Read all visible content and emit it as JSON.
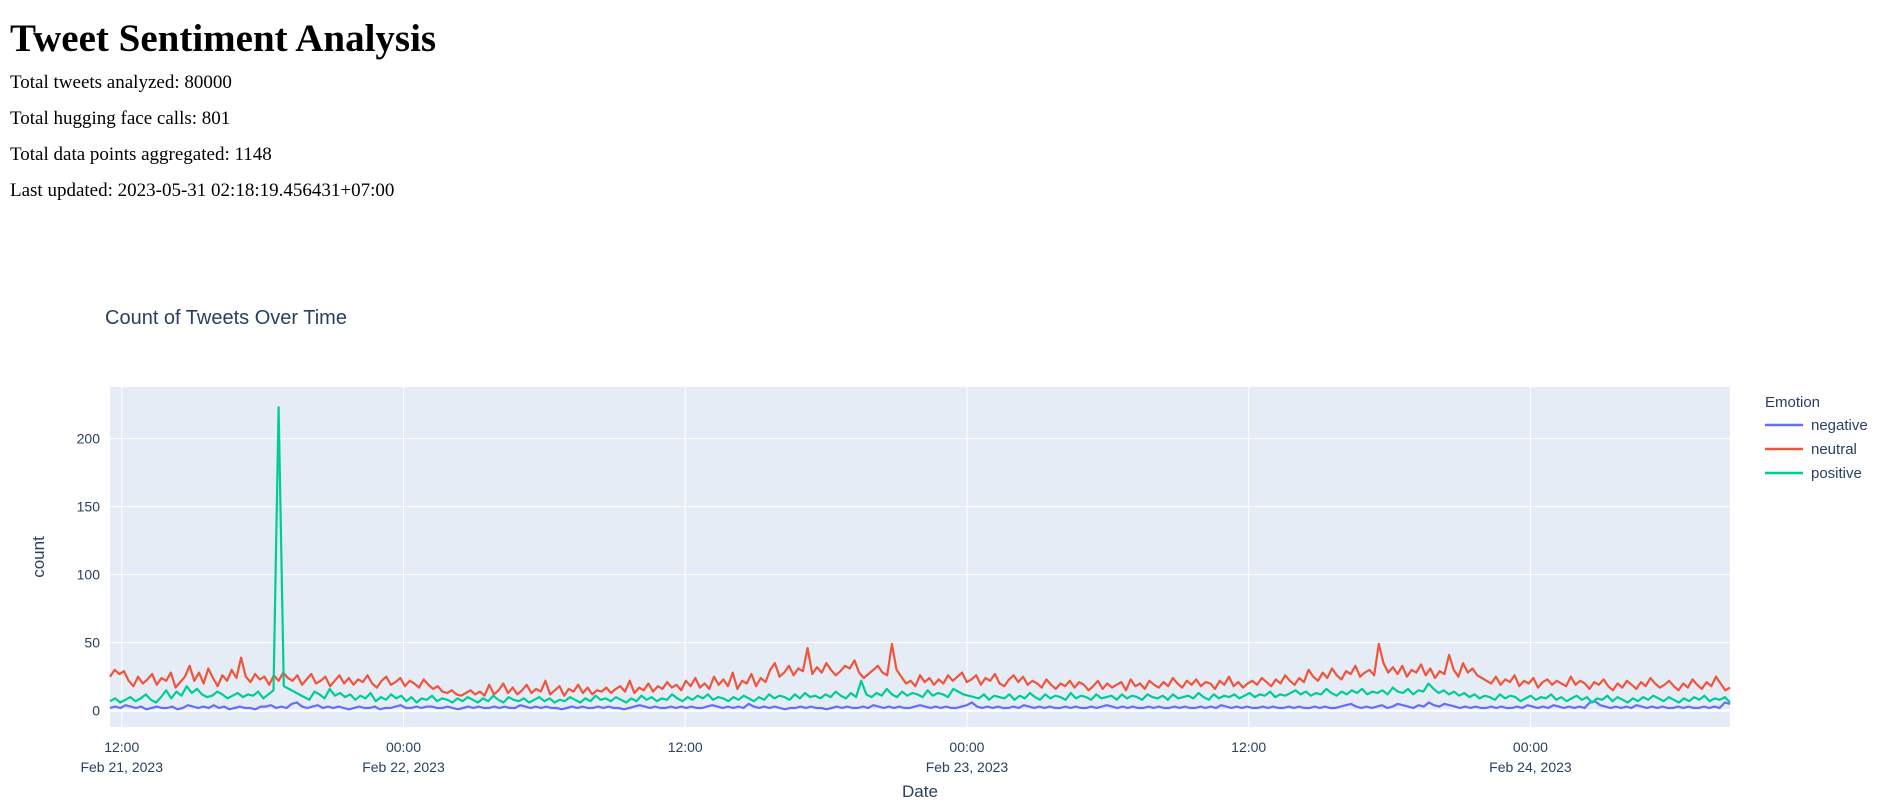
{
  "page": {
    "title": "Tweet Sentiment Analysis",
    "stats": [
      "Total tweets analyzed: 80000",
      "Total hugging face calls: 801",
      "Total data points aggregated: 1148",
      "Last updated: 2023-05-31 02:18:19.456431+07:00"
    ]
  },
  "chart_data": {
    "type": "line",
    "title": "Count of Tweets Over Time",
    "xlabel": "Date",
    "ylabel": "count",
    "legend_title": "Emotion",
    "legend_position": "right",
    "grid": true,
    "x_start": "2023-02-21T11:30",
    "x_end": "2023-02-24T08:30",
    "xlim": [
      "2023-02-21T11:30",
      "2023-02-24T08:30"
    ],
    "ylim": [
      -12,
      238
    ],
    "x_ticks": [
      {
        "value": "2023-02-21T12:00",
        "line1": "12:00",
        "line2": "Feb 21, 2023"
      },
      {
        "value": "2023-02-22T00:00",
        "line1": "00:00",
        "line2": "Feb 22, 2023"
      },
      {
        "value": "2023-02-22T12:00",
        "line1": "12:00",
        "line2": ""
      },
      {
        "value": "2023-02-23T00:00",
        "line1": "00:00",
        "line2": "Feb 23, 2023"
      },
      {
        "value": "2023-02-23T12:00",
        "line1": "12:00",
        "line2": ""
      },
      {
        "value": "2023-02-24T00:00",
        "line1": "00:00",
        "line2": "Feb 24, 2023"
      }
    ],
    "y_ticks": [
      0,
      50,
      100,
      150,
      200
    ],
    "series": [
      {
        "name": "negative",
        "color": "#636efa",
        "values": [
          2,
          3,
          2,
          4,
          3,
          2,
          3,
          1,
          2,
          3,
          2,
          2,
          3,
          1,
          2,
          4,
          3,
          2,
          3,
          2,
          4,
          2,
          3,
          1,
          2,
          3,
          2,
          2,
          1,
          3,
          3,
          4,
          2,
          3,
          2,
          5,
          6,
          3,
          2,
          3,
          4,
          2,
          3,
          2,
          3,
          2,
          1,
          2,
          3,
          2,
          2,
          3,
          1,
          2,
          2,
          3,
          4,
          2,
          2,
          3,
          2,
          3,
          3,
          2,
          2,
          3,
          2,
          1,
          2,
          3,
          2,
          3,
          2,
          2,
          3,
          2,
          3,
          2,
          2,
          4,
          3,
          2,
          3,
          2,
          3,
          2,
          2,
          1,
          2,
          3,
          2,
          3,
          2,
          2,
          3,
          2,
          3,
          2,
          2,
          1,
          2,
          3,
          4,
          3,
          2,
          3,
          2,
          2,
          3,
          2,
          3,
          2,
          3,
          2,
          2,
          3,
          4,
          3,
          2,
          3,
          2,
          3,
          2,
          5,
          3,
          2,
          3,
          2,
          3,
          2,
          1,
          2,
          2,
          3,
          2,
          3,
          2,
          2,
          1,
          2,
          3,
          2,
          3,
          2,
          2,
          3,
          2,
          4,
          3,
          2,
          3,
          2,
          3,
          2,
          2,
          3,
          4,
          3,
          2,
          3,
          2,
          3,
          2,
          2,
          3,
          4,
          6,
          3,
          2,
          3,
          2,
          3,
          2,
          2,
          3,
          2,
          4,
          3,
          2,
          3,
          2,
          3,
          2,
          2,
          3,
          2,
          3,
          2,
          2,
          3,
          2,
          3,
          4,
          3,
          2,
          3,
          2,
          3,
          2,
          2,
          3,
          2,
          3,
          2,
          2,
          3,
          2,
          3,
          2,
          2,
          3,
          2,
          3,
          2,
          4,
          3,
          2,
          3,
          2,
          3,
          2,
          2,
          3,
          2,
          3,
          2,
          2,
          3,
          2,
          3,
          2,
          2,
          3,
          2,
          3,
          2,
          2,
          3,
          4,
          5,
          3,
          2,
          3,
          2,
          3,
          4,
          2,
          3,
          5,
          4,
          3,
          2,
          4,
          3,
          6,
          4,
          3,
          5,
          4,
          3,
          2,
          3,
          2,
          3,
          2,
          2,
          3,
          2,
          3,
          2,
          2,
          3,
          2,
          4,
          3,
          2,
          3,
          2,
          4,
          3,
          2,
          3,
          2,
          3,
          2,
          6,
          7,
          4,
          3,
          2,
          3,
          2,
          3,
          2,
          4,
          3,
          2,
          3,
          2,
          3,
          2,
          2,
          3,
          2,
          3,
          2,
          2,
          3,
          2,
          3,
          2,
          6,
          5
        ]
      },
      {
        "name": "neutral",
        "color": "#ef553b",
        "values": [
          25,
          30,
          27,
          29,
          22,
          18,
          25,
          20,
          23,
          27,
          19,
          24,
          22,
          28,
          17,
          21,
          25,
          33,
          22,
          28,
          20,
          31,
          24,
          18,
          26,
          22,
          30,
          24,
          39,
          25,
          21,
          27,
          23,
          25,
          19,
          26,
          22,
          28,
          24,
          22,
          26,
          19,
          23,
          27,
          20,
          22,
          25,
          18,
          22,
          26,
          20,
          24,
          19,
          23,
          21,
          26,
          20,
          17,
          22,
          25,
          19,
          21,
          24,
          18,
          22,
          20,
          17,
          23,
          19,
          16,
          18,
          14,
          13,
          15,
          12,
          11,
          13,
          15,
          12,
          14,
          11,
          19,
          12,
          15,
          20,
          13,
          17,
          12,
          15,
          19,
          13,
          16,
          14,
          22,
          12,
          15,
          18,
          11,
          16,
          14,
          19,
          13,
          17,
          12,
          15,
          14,
          17,
          13,
          16,
          18,
          14,
          22,
          13,
          17,
          15,
          20,
          14,
          18,
          16,
          21,
          17,
          19,
          15,
          22,
          18,
          24,
          17,
          20,
          16,
          25,
          19,
          23,
          18,
          28,
          16,
          22,
          20,
          27,
          18,
          24,
          21,
          30,
          35,
          25,
          28,
          33,
          26,
          31,
          29,
          46,
          27,
          32,
          28,
          35,
          30,
          26,
          29,
          33,
          31,
          37,
          28,
          24,
          27,
          30,
          33,
          28,
          26,
          49,
          30,
          25,
          20,
          22,
          18,
          26,
          21,
          24,
          19,
          23,
          20,
          26,
          22,
          25,
          28,
          21,
          23,
          26,
          19,
          24,
          22,
          27,
          20,
          18,
          23,
          26,
          21,
          25,
          19,
          22,
          20,
          17,
          23,
          19,
          16,
          20,
          18,
          22,
          17,
          21,
          19,
          15,
          18,
          22,
          16,
          20,
          17,
          19,
          21,
          15,
          23,
          18,
          20,
          16,
          22,
          19,
          17,
          21,
          18,
          24,
          20,
          17,
          22,
          19,
          23,
          18,
          21,
          20,
          16,
          22,
          19,
          25,
          18,
          21,
          17,
          20,
          22,
          19,
          24,
          21,
          18,
          23,
          20,
          26,
          22,
          19,
          24,
          21,
          30,
          25,
          22,
          28,
          24,
          31,
          26,
          23,
          29,
          27,
          33,
          25,
          28,
          30,
          26,
          49,
          35,
          28,
          32,
          27,
          33,
          25,
          30,
          28,
          34,
          26,
          31,
          24,
          29,
          27,
          41,
          30,
          25,
          35,
          28,
          31,
          26,
          24,
          22,
          20,
          25,
          19,
          23,
          21,
          26,
          18,
          22,
          20,
          24,
          17,
          21,
          23,
          19,
          22,
          20,
          18,
          25,
          19,
          22,
          20,
          16,
          21,
          19,
          23,
          18,
          15,
          20,
          17,
          22,
          19,
          16,
          21,
          18,
          24,
          20,
          17,
          19,
          22,
          18,
          15,
          20,
          17,
          23,
          19,
          16,
          21,
          18,
          25,
          20,
          15,
          17
        ]
      },
      {
        "name": "positive",
        "color": "#00cc96",
        "values": [
          7,
          9,
          6,
          8,
          10,
          7,
          9,
          12,
          8,
          6,
          10,
          15,
          9,
          14,
          11,
          18,
          13,
          16,
          12,
          10,
          11,
          14,
          12,
          9,
          11,
          13,
          10,
          12,
          11,
          14,
          9,
          12,
          15,
          223,
          18,
          16,
          14,
          12,
          10,
          8,
          14,
          12,
          9,
          16,
          11,
          13,
          10,
          12,
          8,
          11,
          9,
          13,
          7,
          10,
          8,
          12,
          9,
          11,
          7,
          10,
          6,
          9,
          8,
          11,
          7,
          9,
          8,
          6,
          9,
          7,
          10,
          8,
          6,
          9,
          7,
          11,
          8,
          6,
          10,
          8,
          7,
          9,
          6,
          8,
          10,
          7,
          9,
          6,
          8,
          7,
          10,
          8,
          6,
          9,
          7,
          11,
          8,
          9,
          7,
          10,
          8,
          6,
          9,
          7,
          11,
          8,
          10,
          7,
          9,
          8,
          12,
          9,
          7,
          10,
          8,
          11,
          9,
          12,
          8,
          10,
          9,
          7,
          10,
          8,
          11,
          9,
          7,
          10,
          8,
          12,
          9,
          11,
          10,
          8,
          12,
          9,
          13,
          10,
          11,
          9,
          12,
          10,
          14,
          11,
          9,
          13,
          10,
          22,
          12,
          10,
          13,
          11,
          16,
          12,
          10,
          14,
          11,
          13,
          12,
          10,
          15,
          11,
          13,
          12,
          10,
          16,
          14,
          12,
          11,
          10,
          9,
          12,
          8,
          11,
          10,
          9,
          12,
          8,
          11,
          9,
          13,
          10,
          8,
          12,
          9,
          11,
          10,
          8,
          13,
          9,
          11,
          10,
          8,
          12,
          9,
          10,
          11,
          8,
          12,
          9,
          11,
          10,
          8,
          12,
          10,
          9,
          11,
          8,
          12,
          9,
          10,
          11,
          9,
          13,
          10,
          8,
          12,
          9,
          11,
          10,
          12,
          9,
          11,
          13,
          10,
          12,
          11,
          14,
          10,
          12,
          11,
          13,
          15,
          12,
          14,
          11,
          13,
          12,
          16,
          13,
          11,
          14,
          12,
          15,
          13,
          16,
          12,
          14,
          13,
          15,
          12,
          17,
          14,
          13,
          16,
          12,
          15,
          14,
          20,
          16,
          13,
          15,
          12,
          14,
          11,
          13,
          10,
          12,
          9,
          11,
          10,
          8,
          12,
          9,
          11,
          10,
          7,
          9,
          11,
          8,
          10,
          9,
          12,
          8,
          10,
          7,
          9,
          11,
          8,
          10,
          6,
          9,
          8,
          11,
          7,
          10,
          8,
          6,
          9,
          7,
          10,
          8,
          11,
          9,
          7,
          10,
          8,
          6,
          9,
          7,
          10,
          8,
          11,
          7,
          9,
          8,
          10,
          6
        ]
      }
    ]
  }
}
